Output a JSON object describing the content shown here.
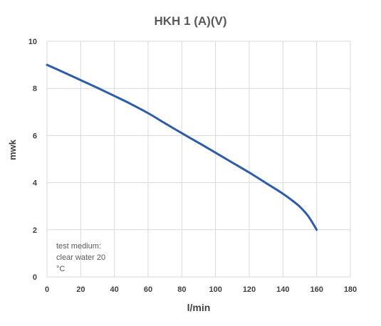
{
  "chart_data": {
    "type": "line",
    "title": "HKH 1 (A)(V)",
    "xlabel": "l/min",
    "ylabel": "mwk",
    "xlim": [
      0,
      180
    ],
    "ylim": [
      0,
      10
    ],
    "xticks": [
      0,
      20,
      40,
      60,
      80,
      100,
      120,
      140,
      160,
      180
    ],
    "yticks": [
      0,
      2,
      4,
      6,
      8,
      10
    ],
    "grid": true,
    "series": [
      {
        "color": "#2e5ca8",
        "x": [
          0,
          10,
          20,
          30,
          40,
          50,
          60,
          70,
          80,
          90,
          100,
          110,
          120,
          130,
          140,
          145,
          150,
          155,
          160
        ],
        "y": [
          9.0,
          8.68,
          8.35,
          8.02,
          7.68,
          7.33,
          6.95,
          6.52,
          6.1,
          5.69,
          5.27,
          4.85,
          4.43,
          3.98,
          3.53,
          3.27,
          2.98,
          2.58,
          2.0
        ]
      }
    ],
    "annotation": [
      "test medium:",
      "clear water 20",
      "°C"
    ]
  }
}
